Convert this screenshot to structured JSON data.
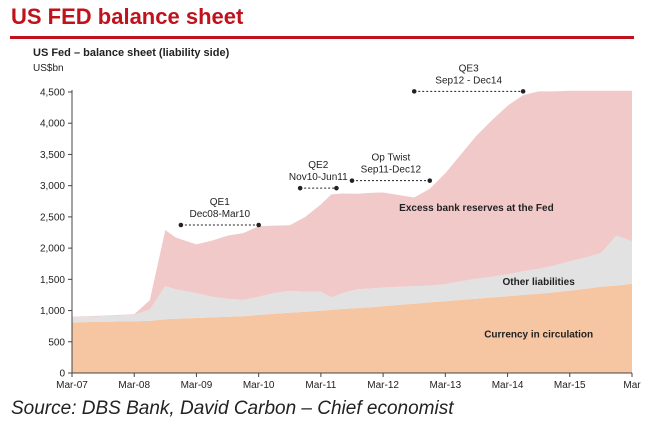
{
  "header": {
    "title": "US FED balance sheet"
  },
  "source": "Source: DBS Bank, David Carbon – Chief economist",
  "chart_data": {
    "type": "area",
    "title": "US Fed – balance sheet (liability side)",
    "ylabel": "US$bn",
    "xlabel": "",
    "stacked": true,
    "ylim": [
      0,
      4500
    ],
    "yticks": [
      0,
      500,
      1000,
      1500,
      2000,
      2500,
      3000,
      3500,
      4000,
      4500
    ],
    "ytick_labels": [
      "0",
      "500",
      "1,000",
      "1,500",
      "2,000",
      "2,500",
      "3,000",
      "3,500",
      "4,000",
      "4,500"
    ],
    "xtick_labels": [
      "Mar-07",
      "Mar-08",
      "Mar-09",
      "Mar-10",
      "Mar-11",
      "Mar-12",
      "Mar-13",
      "Mar-14",
      "Mar-15",
      "Mar"
    ],
    "xtick_pos": [
      0,
      12,
      24,
      36,
      48,
      60,
      72,
      84,
      96,
      108
    ],
    "x": [
      0,
      6,
      12,
      15,
      18,
      20,
      24,
      27,
      30,
      33,
      36,
      39,
      42,
      45,
      48,
      50,
      52,
      55,
      58,
      60,
      63,
      66,
      69,
      72,
      75,
      78,
      81,
      84,
      87,
      90,
      93,
      96,
      99,
      102,
      105,
      108
    ],
    "series": [
      {
        "name": "Currency in circulation",
        "color": "#f6c6a2",
        "values": [
          810,
          820,
          830,
          835,
          860,
          870,
          880,
          890,
          900,
          910,
          930,
          950,
          965,
          980,
          1000,
          1010,
          1025,
          1040,
          1055,
          1070,
          1090,
          1110,
          1130,
          1150,
          1170,
          1190,
          1210,
          1230,
          1250,
          1270,
          1290,
          1320,
          1350,
          1380,
          1400,
          1430
        ]
      },
      {
        "name": "Other liabilities",
        "color": "#e2e2e2",
        "values": [
          80,
          90,
          100,
          180,
          530,
          470,
          400,
          330,
          290,
          260,
          290,
          330,
          350,
          320,
          300,
          200,
          250,
          300,
          300,
          300,
          290,
          280,
          270,
          270,
          300,
          320,
          330,
          350,
          380,
          400,
          430,
          470,
          500,
          540,
          800,
          680
        ]
      },
      {
        "name": "Excess bank reserves at the Fed",
        "color": "#f2c9c9",
        "values": [
          10,
          10,
          10,
          150,
          900,
          830,
          780,
          900,
          1010,
          1070,
          1130,
          1080,
          1050,
          1200,
          1400,
          1650,
          1600,
          1530,
          1530,
          1520,
          1470,
          1420,
          1550,
          1780,
          2030,
          2290,
          2510,
          2700,
          2820,
          2840,
          2790,
          2730,
          2670,
          2600,
          2320,
          2410
        ]
      }
    ],
    "annotations": [
      {
        "label": "QE1",
        "period": "Dec08-Mar10",
        "range": [
          21,
          36
        ],
        "y": 2370
      },
      {
        "label": "QE2",
        "period": "Nov10-Jun11",
        "range": [
          44,
          51
        ],
        "y": 2960
      },
      {
        "label": "Op Twist",
        "period": "Sep11-Dec12",
        "range": [
          54,
          69
        ],
        "y": 3080
      },
      {
        "label": "QE3",
        "period": "Sep12 - Dec14",
        "range": [
          66,
          87
        ],
        "y": 4510
      }
    ],
    "grid": false,
    "legend": "none (inline series labels)"
  }
}
